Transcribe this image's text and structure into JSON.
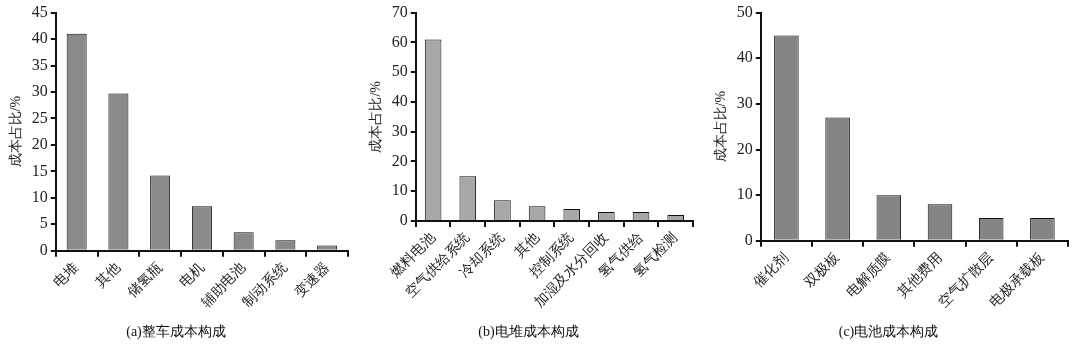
{
  "chart_data": [
    {
      "type": "bar",
      "title": "(a)整车成本构成",
      "ylabel": "成本占比/%",
      "categories": [
        "电堆",
        "其他",
        "储氢瓶",
        "电机",
        "辅助电池",
        "制动系统",
        "变速器"
      ],
      "values": [
        41,
        29.7,
        14.2,
        8.4,
        3.5,
        2,
        1
      ],
      "color": "#8a8a8a",
      "ylim": [
        0,
        45
      ],
      "yticks": [
        0,
        5,
        10,
        15,
        20,
        25,
        30,
        35,
        40,
        45
      ],
      "grid": false,
      "legend": false
    },
    {
      "type": "bar",
      "title": "(b)电堆成本构成",
      "ylabel": "成本占比/%",
      "categories": [
        "燃料电池",
        "空气供给系统",
        "冷却系统",
        "其他",
        "控制系统",
        "加湿及水分回收",
        "氢气供给",
        "氢气检测"
      ],
      "values": [
        61,
        15,
        7,
        5,
        4,
        3,
        3,
        2
      ],
      "color": "#a8a8a8",
      "ylim": [
        0,
        70
      ],
      "yticks": [
        0,
        10,
        20,
        30,
        40,
        50,
        60,
        70
      ],
      "grid": false,
      "legend": false
    },
    {
      "type": "bar",
      "title": "(c)电池成本构成",
      "ylabel": "成本占比/%",
      "categories": [
        "催化剂",
        "双极板",
        "电解质膜",
        "其他费用",
        "空气扩散层",
        "电极承载板"
      ],
      "values": [
        45,
        27,
        10,
        8,
        5,
        5
      ],
      "color": "#858585",
      "ylim": [
        0,
        50
      ],
      "yticks": [
        0,
        10,
        20,
        30,
        40,
        50
      ],
      "grid": false,
      "legend": false
    }
  ]
}
